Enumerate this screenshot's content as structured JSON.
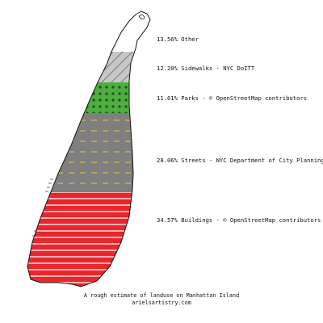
{
  "segments": [
    {
      "id": "other",
      "percent": 13.56,
      "label": "13.56% Other",
      "color": "#ffffff"
    },
    {
      "id": "sidewalks",
      "percent": 12.2,
      "label": "12.20% Sidewalks - NYC DoITT",
      "color": "#c8c8c8"
    },
    {
      "id": "parks",
      "percent": 11.61,
      "label": "11.61% Parks - © OpenStreetMap contributors",
      "color": "#4caf3f"
    },
    {
      "id": "streets",
      "percent": 28.06,
      "label": "28.06% Streets - NYC Department of City Planning",
      "color": "#7f7f7f"
    },
    {
      "id": "buildings",
      "percent": 34.57,
      "label": "34.57% Buildings - © OpenStreetMap contributors",
      "color": "#e8262b"
    }
  ],
  "caption": {
    "line1": "A rough estimate of landuse on Manhattan Island",
    "line2": "arielsartistry.com"
  }
}
